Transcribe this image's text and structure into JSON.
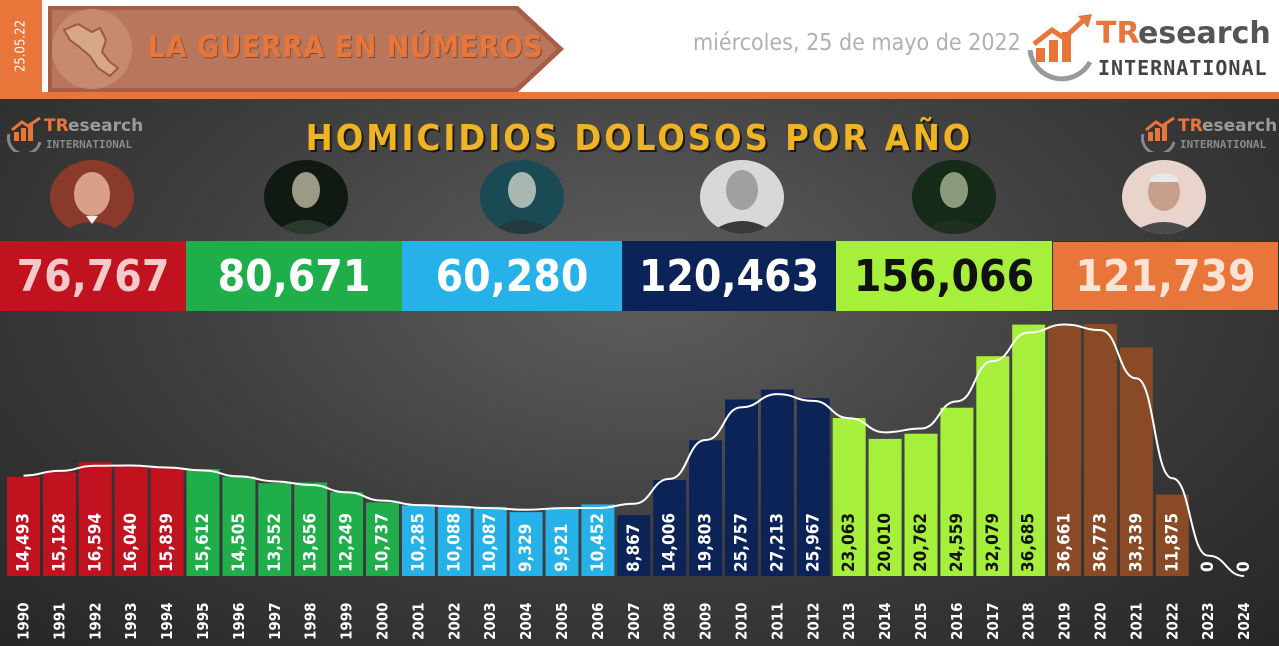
{
  "header": {
    "date_tab": "25.05.22",
    "banner_title": "LA GUERRA EN NÚMEROS",
    "date": "miércoles, 25 de mayo de 2022",
    "brand": {
      "tr": "TR",
      "research": "esearch",
      "international": "INTERNATIONAL"
    }
  },
  "colors": {
    "orange": "#e8763a",
    "title_gold": "#f0b323",
    "salinas": "#c0121f",
    "zedillo": "#1fae4a",
    "fox": "#26b2e8",
    "calderon": "#0c2357",
    "pena": "#a6ef3b",
    "amlo": "#8a4a25"
  },
  "periods": [
    {
      "total": "76,767",
      "color": "#c0121f",
      "text": "#f4c9c9",
      "portrait": "portrait-salinas"
    },
    {
      "total": "80,671",
      "color": "#1fae4a",
      "text": "#ffffff",
      "portrait": "portrait-zedillo"
    },
    {
      "total": "60,280",
      "color": "#26b2e8",
      "text": "#ffffff",
      "portrait": "portrait-fox"
    },
    {
      "total": "120,463",
      "color": "#0c2357",
      "text": "#ffffff",
      "portrait": "portrait-calderon"
    },
    {
      "total": "156,066",
      "color": "#a6ef3b",
      "text": "#111111",
      "portrait": "portrait-pena"
    },
    {
      "total": "121,739",
      "color": "#e8763a",
      "text": "#fbe3d6",
      "portrait": "portrait-amlo"
    }
  ],
  "chart_data": {
    "type": "bar",
    "title": "HOMICIDIOS DOLOSOS POR AÑO",
    "categories": [
      "1990",
      "1991",
      "1992",
      "1993",
      "1994",
      "1995",
      "1996",
      "1997",
      "1998",
      "1999",
      "2000",
      "2001",
      "2002",
      "2003",
      "2004",
      "2005",
      "2006",
      "2007",
      "2008",
      "2009",
      "2010",
      "2011",
      "2012",
      "2013",
      "2014",
      "2015",
      "2016",
      "2017",
      "2018",
      "2019",
      "2020",
      "2021",
      "2022",
      "2023",
      "2024"
    ],
    "values": [
      14493,
      15128,
      16594,
      16040,
      15839,
      15612,
      14505,
      13552,
      13656,
      12249,
      10737,
      10285,
      10088,
      10087,
      9329,
      9921,
      10452,
      8867,
      14006,
      19803,
      25757,
      27213,
      25967,
      23063,
      20010,
      20762,
      24559,
      32079,
      36685,
      36661,
      36773,
      33339,
      11875,
      0,
      0
    ],
    "value_labels": [
      "14,493",
      "15,128",
      "16,594",
      "16,040",
      "15,839",
      "15,612",
      "14,505",
      "13,552",
      "13,656",
      "12,249",
      "10,737",
      "10,285",
      "10,088",
      "10,087",
      "9,329",
      "9,921",
      "10,452",
      "8,867",
      "14,006",
      "19,803",
      "25,757",
      "27,213",
      "25,967",
      "23,063",
      "20,010",
      "20,762",
      "24,559",
      "32,079",
      "36,685",
      "36,661",
      "36,773",
      "33,339",
      "11,875",
      "0",
      "0"
    ],
    "bar_colors": [
      "#c0121f",
      "#c0121f",
      "#c0121f",
      "#c0121f",
      "#c0121f",
      "#1fae4a",
      "#1fae4a",
      "#1fae4a",
      "#1fae4a",
      "#1fae4a",
      "#1fae4a",
      "#26b2e8",
      "#26b2e8",
      "#26b2e8",
      "#26b2e8",
      "#26b2e8",
      "#26b2e8",
      "#0c2357",
      "#0c2357",
      "#0c2357",
      "#0c2357",
      "#0c2357",
      "#0c2357",
      "#a6ef3b",
      "#a6ef3b",
      "#a6ef3b",
      "#a6ef3b",
      "#a6ef3b",
      "#a6ef3b",
      "#8a4a25",
      "#8a4a25",
      "#8a4a25",
      "#8a4a25",
      "#8a4a25",
      "#8a4a25"
    ],
    "label_colors": [
      "#ffffff",
      "#ffffff",
      "#ffffff",
      "#ffffff",
      "#ffffff",
      "#ffffff",
      "#ffffff",
      "#ffffff",
      "#ffffff",
      "#ffffff",
      "#ffffff",
      "#ffffff",
      "#ffffff",
      "#ffffff",
      "#ffffff",
      "#ffffff",
      "#ffffff",
      "#ffffff",
      "#ffffff",
      "#ffffff",
      "#ffffff",
      "#ffffff",
      "#ffffff",
      "#111111",
      "#111111",
      "#111111",
      "#111111",
      "#111111",
      "#111111",
      "#ffffff",
      "#ffffff",
      "#ffffff",
      "#ffffff",
      "#ffffff",
      "#ffffff"
    ],
    "trend_line": "smoothed white line through bar tops",
    "ylim": [
      0,
      37000
    ],
    "grid": false,
    "xlabel": "",
    "ylabel": ""
  }
}
